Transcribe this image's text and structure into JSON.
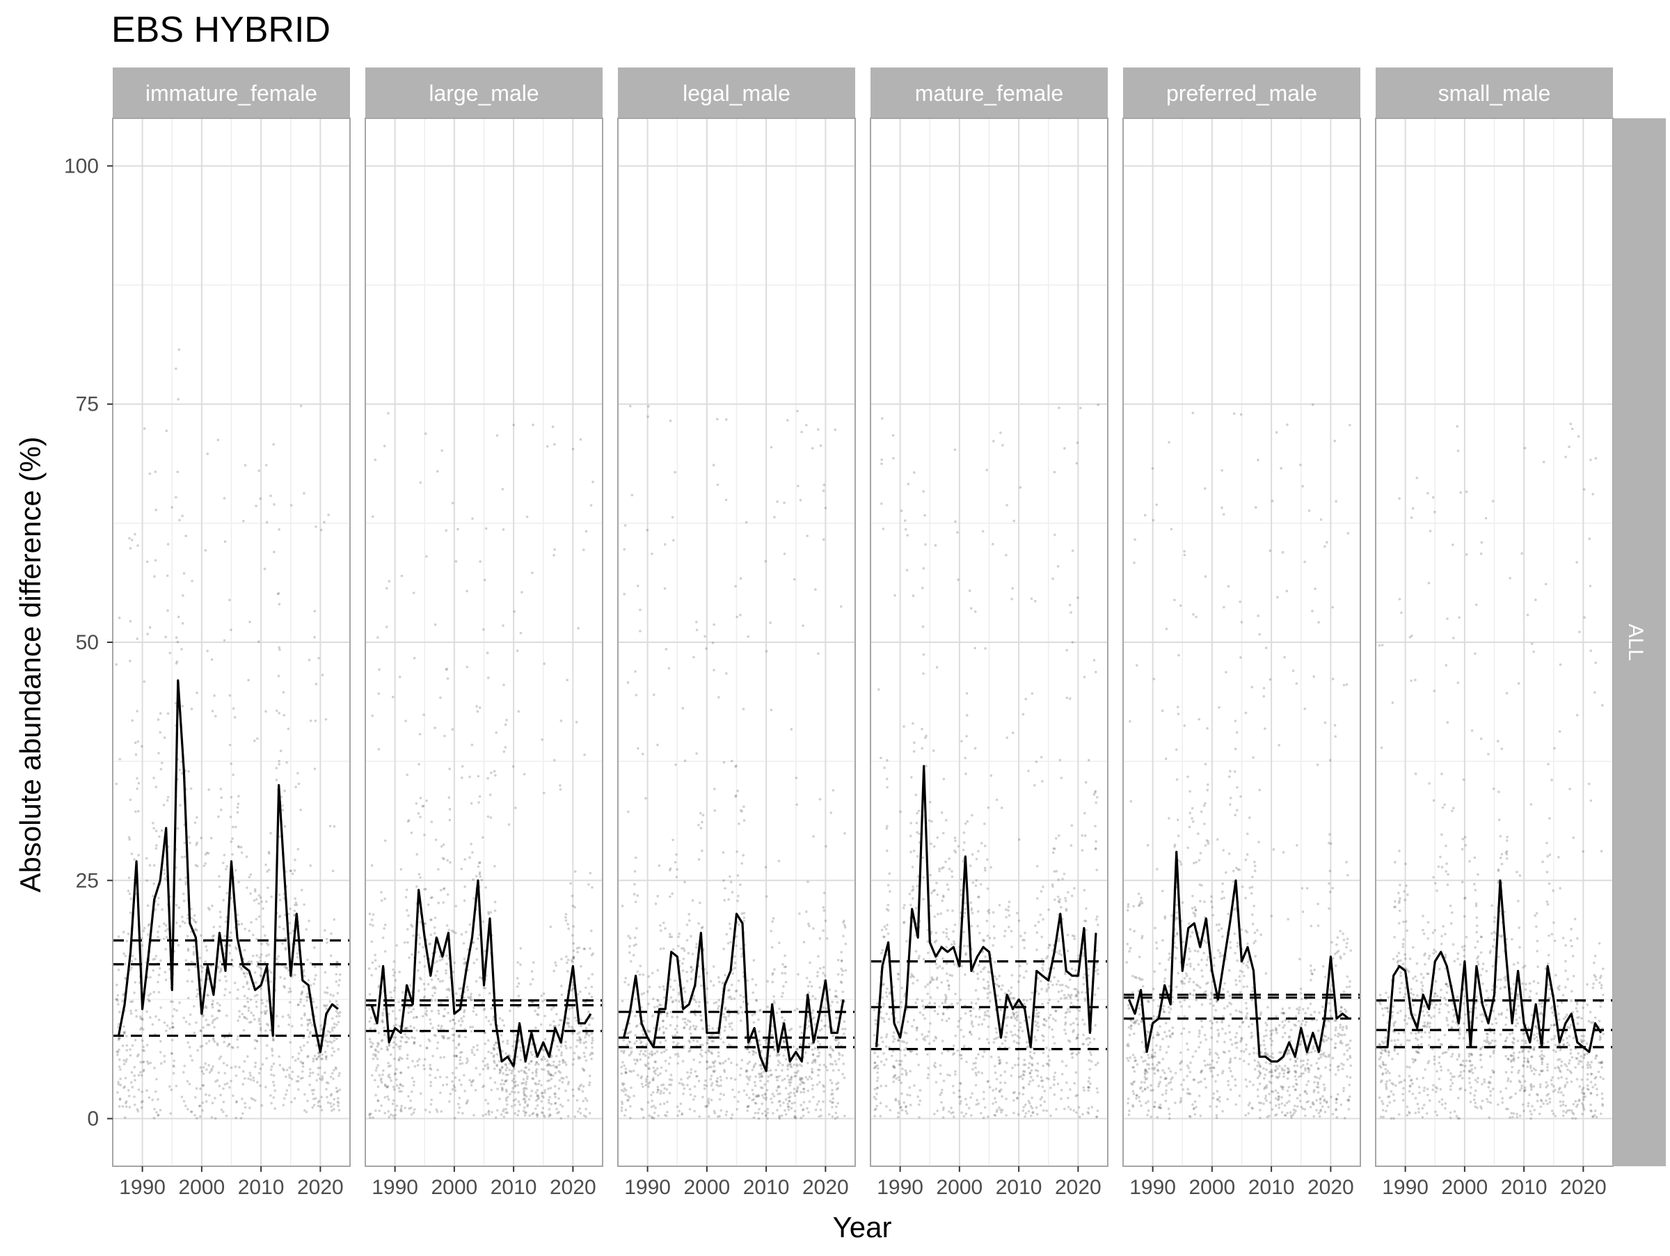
{
  "chart_data": {
    "type": "line",
    "title": "EBS HYBRID",
    "xlabel": "Year",
    "ylabel": "Absolute abundance difference (%)",
    "row_strip": "ALL",
    "xlim": [
      1985,
      2025
    ],
    "ylim": [
      -5,
      105
    ],
    "x_ticks": [
      1990,
      2000,
      2010,
      2020
    ],
    "x_tick_labels": [
      "1990",
      "2000",
      "2010",
      "2020"
    ],
    "y_ticks": [
      0,
      25,
      50,
      75,
      100
    ],
    "y_tick_labels": [
      "0",
      "25",
      "50",
      "75",
      "100"
    ],
    "grid": true,
    "colors": {
      "strip_fill": "#b3b3b3",
      "strip_text": "#ffffff",
      "panel_border": "#a6a6a6",
      "grid_major": "#dcdcdc",
      "grid_minor": "#eeeeee",
      "line": "#000000",
      "points": "#555555",
      "axis_text": "#4d4d4d",
      "title_text": "#000000"
    },
    "panels": [
      {
        "name": "immature_female",
        "x": [
          1986,
          1987,
          1988,
          1989,
          1990,
          1991,
          1992,
          1993,
          1994,
          1995,
          1996,
          1997,
          1998,
          1999,
          2000,
          2001,
          2002,
          2003,
          2004,
          2005,
          2006,
          2007,
          2008,
          2009,
          2010,
          2011,
          2012,
          2013,
          2014,
          2015,
          2016,
          2017,
          2018,
          2019,
          2020,
          2021,
          2022,
          2023
        ],
        "y": [
          8.7,
          12,
          17.5,
          27,
          11.5,
          17,
          23,
          25,
          30.5,
          13.5,
          46,
          36.5,
          20.5,
          19,
          11,
          16,
          13,
          19.5,
          15.5,
          27,
          19,
          16,
          15.5,
          13.5,
          14,
          16,
          8.7,
          35,
          25,
          15,
          21.5,
          14.5,
          14,
          10,
          7,
          11,
          12,
          11.5
        ],
        "hlines": [
          8.7,
          16.2,
          18.7
        ]
      },
      {
        "name": "large_male",
        "x": [
          1986,
          1987,
          1988,
          1989,
          1990,
          1991,
          1992,
          1993,
          1994,
          1995,
          1996,
          1997,
          1998,
          1999,
          2000,
          2001,
          2002,
          2003,
          2004,
          2005,
          2006,
          2007,
          2008,
          2009,
          2010,
          2011,
          2012,
          2013,
          2014,
          2015,
          2016,
          2017,
          2018,
          2019,
          2020,
          2021,
          2022,
          2023
        ],
        "y": [
          12,
          10,
          16,
          8,
          9.5,
          9,
          14,
          12,
          24,
          19,
          15,
          19,
          17,
          19.5,
          11,
          11.5,
          15.5,
          19,
          25,
          14,
          21,
          10,
          6,
          6.5,
          5.5,
          10,
          6,
          9,
          6.5,
          8,
          6.5,
          9.5,
          8,
          12,
          16,
          10,
          10,
          11
        ],
        "hlines": [
          9.2,
          11.9,
          12.4
        ]
      },
      {
        "name": "legal_male",
        "x": [
          1986,
          1987,
          1988,
          1989,
          1990,
          1991,
          1992,
          1993,
          1994,
          1995,
          1996,
          1997,
          1998,
          1999,
          2000,
          2001,
          2002,
          2003,
          2004,
          2005,
          2006,
          2007,
          2008,
          2009,
          2010,
          2011,
          2012,
          2013,
          2014,
          2015,
          2016,
          2017,
          2018,
          2019,
          2020,
          2021,
          2022,
          2023
        ],
        "y": [
          8.5,
          11,
          15,
          10,
          8.5,
          7.5,
          11.5,
          11.5,
          17.5,
          17,
          11.5,
          12,
          14,
          19.5,
          9,
          9,
          9,
          14,
          15.5,
          21.5,
          20.5,
          8,
          9.5,
          6.5,
          5,
          12,
          7,
          10,
          6,
          7,
          6,
          13,
          8,
          11,
          14.5,
          9,
          9,
          12.5
        ],
        "hlines": [
          7.5,
          8.5,
          11.2
        ]
      },
      {
        "name": "mature_female",
        "x": [
          1986,
          1987,
          1988,
          1989,
          1990,
          1991,
          1992,
          1993,
          1994,
          1995,
          1996,
          1997,
          1998,
          1999,
          2000,
          2001,
          2002,
          2003,
          2004,
          2005,
          2006,
          2007,
          2008,
          2009,
          2010,
          2011,
          2012,
          2013,
          2014,
          2015,
          2016,
          2017,
          2018,
          2019,
          2020,
          2021,
          2022,
          2023
        ],
        "y": [
          7.5,
          16,
          18.5,
          10,
          8.5,
          12,
          22,
          19,
          37,
          18.5,
          17,
          18,
          17.5,
          18,
          16,
          27.5,
          15.5,
          17,
          18,
          17.5,
          13,
          8.5,
          13,
          11.5,
          12.5,
          11.5,
          7.5,
          15.5,
          15,
          14.5,
          17.5,
          21.5,
          15.5,
          15,
          15,
          20,
          9,
          19.5
        ],
        "hlines": [
          7.3,
          11.7,
          16.5
        ]
      },
      {
        "name": "preferred_male",
        "x": [
          1986,
          1987,
          1988,
          1989,
          1990,
          1991,
          1992,
          1993,
          1994,
          1995,
          1996,
          1997,
          1998,
          1999,
          2000,
          2001,
          2002,
          2003,
          2004,
          2005,
          2006,
          2007,
          2008,
          2009,
          2010,
          2011,
          2012,
          2013,
          2014,
          2015,
          2016,
          2017,
          2018,
          2019,
          2020,
          2021,
          2022,
          2023
        ],
        "y": [
          12.5,
          11,
          13.5,
          7,
          10,
          10.5,
          14,
          12,
          28,
          15.5,
          20,
          20.5,
          18,
          21,
          15.5,
          12.5,
          16.5,
          20.5,
          25,
          16.5,
          18,
          15.5,
          6.5,
          6.5,
          6,
          6,
          6.5,
          8,
          6.5,
          9.5,
          7,
          9,
          7,
          10.5,
          17,
          10.5,
          11,
          10.5
        ],
        "hlines": [
          10.5,
          12.7,
          13
        ]
      },
      {
        "name": "small_male",
        "x": [
          1986,
          1987,
          1988,
          1989,
          1990,
          1991,
          1992,
          1993,
          1994,
          1995,
          1996,
          1997,
          1998,
          1999,
          2000,
          2001,
          2002,
          2003,
          2004,
          2005,
          2006,
          2007,
          2008,
          2009,
          2010,
          2011,
          2012,
          2013,
          2014,
          2015,
          2016,
          2017,
          2018,
          2019,
          2020,
          2021,
          2022,
          2023
        ],
        "y": [
          7.5,
          7.5,
          15,
          16,
          15.5,
          11,
          9.5,
          13,
          11.5,
          16.5,
          17.5,
          16,
          13,
          10,
          16.5,
          7.5,
          16,
          12,
          10,
          13,
          25,
          17,
          10,
          15.5,
          10,
          8,
          12,
          7.5,
          16,
          12.5,
          8,
          10,
          11,
          8,
          7.5,
          7,
          10,
          9
        ],
        "hlines": [
          7.5,
          9.3,
          12.4
        ]
      }
    ]
  }
}
